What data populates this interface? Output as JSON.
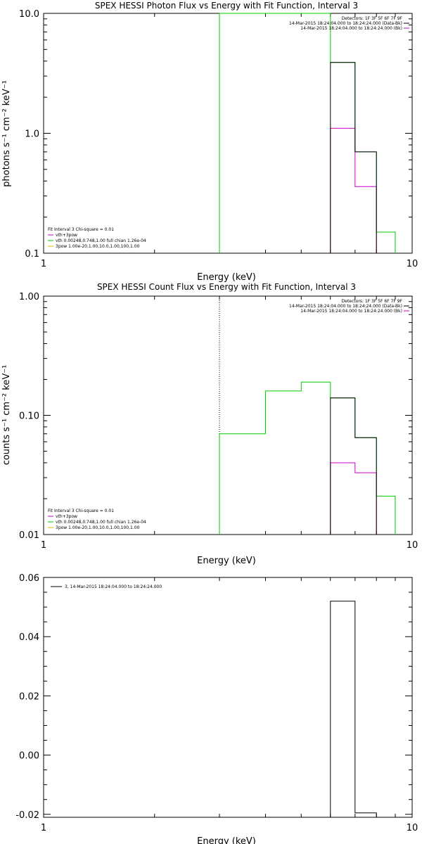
{
  "colors": {
    "data": "#000000",
    "total": "#00cc00",
    "vth_plus_3pow": "#cc00cc",
    "vth": "#00cc00",
    "3pow": "#e6b800",
    "marker": "#00aa00"
  },
  "chart_data": [
    {
      "type": "line",
      "title": "SPEX HESSI Photon Flux vs Energy with Fit Function, Interval 3",
      "xlabel": "Energy (keV)",
      "ylabel": "photons s⁻¹ cm⁻² keV⁻¹",
      "xscale": "log",
      "yscale": "log",
      "xlim": [
        1,
        10
      ],
      "ylim": [
        0.1,
        10
      ],
      "xticks": [
        {
          "v": 1,
          "t": "1"
        },
        {
          "v": 10,
          "t": "10"
        }
      ],
      "yticks": [
        {
          "v": 0.1,
          "t": "0.1"
        },
        {
          "v": 1,
          "t": "1.0"
        },
        {
          "v": 10,
          "t": "10.0"
        }
      ],
      "fit_start": 3,
      "legend_right": [
        "Detectors: 1F 3F 5F 6F 7F 9F",
        "14-Mar-2015 18:24:04.000 to 18:24:24.000 (Data-Bk)",
        "14-Mar-2015 18:24:04.000 to 18:24:24.000 (Bk)"
      ],
      "legend_left": [
        "Fit Interval 3   Chi-square = 0.01",
        "vth+3pow",
        "vth 0.00248,0.748,1.00  full chian 1.26e-04",
        "3pow 1.00e-20,1.00,10.0,1.00,100,1.00"
      ],
      "series": [
        {
          "name": "vth+3pow",
          "color": "#00cc00",
          "steps": [
            [
              3,
              6,
              10
            ],
            [
              6,
              7,
              3.9
            ],
            [
              7,
              8,
              0.7
            ],
            [
              8,
              9,
              0.15
            ]
          ]
        },
        {
          "name": "(Bk)",
          "color": "#cc00cc",
          "steps": [
            [
              6,
              7,
              1.1
            ],
            [
              7,
              8,
              0.36
            ]
          ]
        },
        {
          "name": "(Data-Bk)",
          "color": "#000000",
          "steps": [
            [
              6,
              7,
              3.9
            ],
            [
              7,
              8,
              0.7
            ]
          ]
        }
      ]
    },
    {
      "type": "line",
      "title": "SPEX HESSI Count Flux vs Energy with Fit Function, Interval 3",
      "xlabel": "Energy (keV)",
      "ylabel": "counts s⁻¹ cm⁻² keV⁻¹",
      "xscale": "log",
      "yscale": "log",
      "xlim": [
        1,
        10
      ],
      "ylim": [
        0.01,
        1
      ],
      "xticks": [
        {
          "v": 1,
          "t": "1"
        },
        {
          "v": 10,
          "t": "10"
        }
      ],
      "yticks": [
        {
          "v": 0.01,
          "t": "0.01"
        },
        {
          "v": 0.1,
          "t": "0.10"
        },
        {
          "v": 1,
          "t": "1.00"
        }
      ],
      "fit_start": 3,
      "legend_right": [
        "Detectors: 1F 3F 5F 6F 7F 9F",
        "14-Mar-2015 18:24:04.000 to 18:24:24.000 (Data-Bk)",
        "14-Mar-2015 18:24:04.000 to 18:24:24.000 (Bk)"
      ],
      "legend_left": [
        "Fit Interval 3   Chi-square = 0.01",
        "vth+3pow",
        "vth 0.00248,0.748,1.00  full chian 1.26e-04",
        "3pow 1.00e-20,1.00,10.0,1.00,100,1.00"
      ],
      "series": [
        {
          "name": "vth+3pow",
          "color": "#00cc00",
          "steps": [
            [
              3,
              4,
              0.07
            ],
            [
              4,
              5,
              0.16
            ],
            [
              5,
              6,
              0.19
            ],
            [
              6,
              7,
              0.14
            ],
            [
              7,
              8,
              0.065
            ],
            [
              8,
              9,
              0.021
            ]
          ]
        },
        {
          "name": "(Bk)",
          "color": "#cc00cc",
          "steps": [
            [
              6,
              7,
              0.04
            ],
            [
              7,
              8,
              0.033
            ]
          ]
        },
        {
          "name": "(Data-Bk)",
          "color": "#000000",
          "steps": [
            [
              6,
              7,
              0.14
            ],
            [
              7,
              8,
              0.065
            ]
          ]
        }
      ]
    },
    {
      "type": "bar",
      "title": "",
      "xlabel": "Energy (keV)",
      "ylabel": "",
      "xscale": "log",
      "yscale": "linear",
      "xlim": [
        1,
        10
      ],
      "ylim": [
        -0.021,
        0.06
      ],
      "xticks": [
        {
          "v": 1,
          "t": "1"
        },
        {
          "v": 10,
          "t": "10"
        }
      ],
      "yticks": [
        {
          "v": -0.02,
          "t": "-0.02"
        },
        {
          "v": 0,
          "t": "0.00"
        },
        {
          "v": 0.02,
          "t": "0.02"
        },
        {
          "v": 0.04,
          "t": "0.04"
        },
        {
          "v": 0.06,
          "t": "0.06"
        }
      ],
      "legend_top": "3, 14-Mar-2015 18:24:04.000 to 18:24:24.000",
      "series": [
        {
          "name": "3, 14-Mar-2015 18:24:04.000 to 18:24:24.000",
          "color": "#000000",
          "steps": [
            [
              6,
              7,
              0.052
            ],
            [
              7,
              8,
              -0.0195
            ]
          ]
        }
      ]
    }
  ]
}
